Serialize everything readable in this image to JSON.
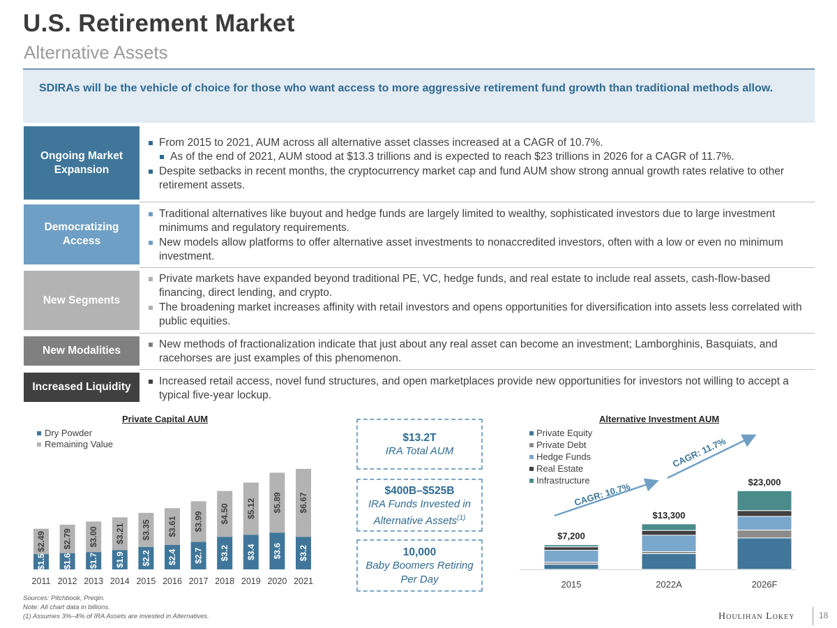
{
  "header": {
    "title": "U.S. Retirement Market",
    "subtitle": "Alternative Assets"
  },
  "callout": "SDIRAs will be the vehicle of choice for those who want access to more aggressive retirement fund growth than traditional methods allow.",
  "rows": [
    {
      "label": "Ongoing Market Expansion",
      "color": "#3f7699",
      "bullets": [
        "From 2015 to 2021, AUM across all alternative asset classes increased at a CAGR of 10.7%.",
        "As of the end of 2021, AUM stood at $13.3 trillions and is expected to reach $23 trillions in 2026 for a CAGR of 11.7%.",
        "Despite setbacks in recent months, the cryptocurrency market cap and fund AUM show strong annual growth rates relative to other retirement assets."
      ]
    },
    {
      "label": "Democratizing Access",
      "color": "#6f9fc4",
      "bullets": [
        "Traditional alternatives like buyout and hedge funds are largely limited to wealthy, sophisticated investors due to large investment minimums and regulatory requirements.",
        "New models allow platforms to offer alternative asset investments to nonaccredited investors, often with a low or even no minimum investment."
      ]
    },
    {
      "label": "New Segments",
      "color": "#b3b3b3",
      "bullets": [
        "Private markets have expanded beyond traditional PE, VC, hedge funds, and real estate to include real assets, cash-flow-based financing, direct lending, and crypto.",
        "The broadening market increases affinity with retail investors and opens opportunities for diversification into assets less correlated with public equities."
      ]
    },
    {
      "label": "New Modalities",
      "color": "#808080",
      "bullets": [
        "New methods of fractionalization indicate that just about any real asset can become an investment; Lamborghinis, Basquiats, and racehorses are just examples of this phenomenon."
      ]
    },
    {
      "label": "Increased Liquidity",
      "color": "#404040",
      "bullets": [
        "Increased retail access, novel fund structures, and open marketplaces provide new opportunities for investors not willing to accept a typical five-year lockup."
      ]
    }
  ],
  "stats": [
    {
      "value": "$13.2T",
      "label": "IRA Total AUM"
    },
    {
      "value": "$400B–$525B",
      "label": "IRA Funds Invested in Alternative Assets",
      "sup": "(1)"
    },
    {
      "value": "10,000",
      "label": "Baby Boomers Retiring Per Day"
    }
  ],
  "chart_data": [
    {
      "type": "bar",
      "stacked": true,
      "title": "Private Capital AUM",
      "categories": [
        "2011",
        "2012",
        "2013",
        "2014",
        "2015",
        "2016",
        "2017",
        "2018",
        "2019",
        "2020",
        "2021"
      ],
      "series": [
        {
          "name": "Dry Powder",
          "color": "#3f7699",
          "values": [
            1.5,
            1.6,
            1.7,
            1.9,
            2.2,
            2.4,
            2.7,
            3.2,
            3.4,
            3.6,
            3.2
          ],
          "labels": [
            "$1.5",
            "$1.6",
            "$1.7",
            "$1.9",
            "$2.2",
            "$2.4",
            "$2.7",
            "$3.2",
            "$3.4",
            "$3.6",
            "$3.2"
          ]
        },
        {
          "name": "Remaining Value",
          "color": "#b3b3b3",
          "values": [
            2.49,
            2.79,
            3.0,
            3.21,
            3.35,
            3.61,
            3.99,
            4.5,
            5.12,
            5.89,
            6.67
          ],
          "labels": [
            "$2.49",
            "$2.79",
            "$3.00",
            "$3.21",
            "$3.35",
            "$3.61",
            "$3.99",
            "$4.50",
            "$5.12",
            "$5.89",
            "$6.67"
          ]
        }
      ],
      "legend": "top-left"
    },
    {
      "type": "bar",
      "stacked": true,
      "title": "Alternative Investment AUM",
      "categories": [
        "2015",
        "2022A",
        "2026F"
      ],
      "totals": [
        7200,
        13300,
        23000
      ],
      "total_labels": [
        "$7,200",
        "$13,300",
        "$23,000"
      ],
      "series": [
        {
          "name": "Private Equity",
          "color": "#3f7699",
          "values": [
            1500,
            4600,
            9200
          ]
        },
        {
          "name": "Private Debt",
          "color": "#8c8c8c",
          "values": [
            600,
            600,
            2300
          ]
        },
        {
          "name": "Hedge Funds",
          "color": "#7aa7cc",
          "values": [
            3500,
            4800,
            4000
          ]
        },
        {
          "name": "Real Estate",
          "color": "#404040",
          "values": [
            1000,
            1400,
            1700
          ]
        },
        {
          "name": "Infrastructure",
          "color": "#4a8c8c",
          "values": [
            600,
            1900,
            5800
          ]
        }
      ],
      "annotations": [
        "CAGR: 10.7%",
        "CAGR: 11.7%"
      ],
      "legend": "top-left"
    }
  ],
  "footnotes": [
    "Sources: Pitchbook, Preqin.",
    "Note: All chart data in billions.",
    "(1) Assumes 3%–4% of IRA Assets are invested in Alternatives."
  ],
  "footer": {
    "logo": "Houlihan Lokey",
    "page_number": "18"
  }
}
